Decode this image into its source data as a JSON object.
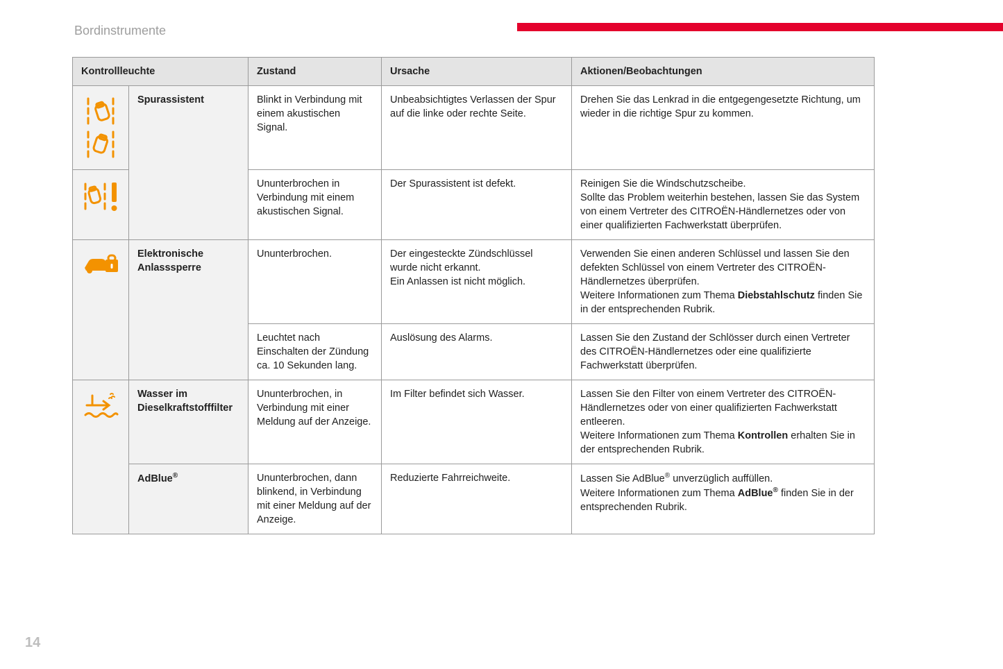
{
  "accent_color": "#e4012c",
  "icon_color": "#f39200",
  "section_title": "Bordinstrumente",
  "page_number": "14",
  "columns": {
    "c1": "Kontrollleuchte",
    "c2": "Zustand",
    "c3": "Ursache",
    "c4": "Aktionen/Beobachtungen"
  },
  "row1": {
    "name": "Spurassistent",
    "state": "Blinkt in Verbindung mit einem akustischen Signal.",
    "cause": "Unbeabsichtigtes Verlassen der Spur auf die linke oder rechte Seite.",
    "action": "Drehen Sie das Lenkrad in die entgegengesetzte Richtung, um wieder in die richtige Spur zu kommen."
  },
  "row2": {
    "state": "Ununterbrochen in Verbindung mit einem akustischen Signal.",
    "cause": "Der Spurassistent ist defekt.",
    "action": "Reinigen Sie die Windschutzscheibe.\nSollte das Problem weiterhin bestehen, lassen Sie das System von einem Vertreter des CITROËN-Händlernetzes oder von einer qualifizierten Fachwerkstatt überprüfen."
  },
  "row3": {
    "name": "Elektronische Anlasssperre",
    "state": "Ununterbrochen.",
    "cause": "Der eingesteckte Zündschlüssel wurde nicht erkannt.\nEin Anlassen ist nicht möglich.",
    "action_a": "Verwenden Sie einen anderen Schlüssel und lassen Sie den defekten Schlüssel von einem Vertreter des CITROËN-Händlernetzes überprüfen.",
    "action_b1": "Weitere Informationen zum Thema ",
    "action_b_bold": "Diebstahlschutz",
    "action_b2": " finden Sie in der entsprechenden Rubrik."
  },
  "row4": {
    "state": "Leuchtet nach Einschalten der Zündung ca. 10 Sekunden lang.",
    "cause": "Auslösung des Alarms.",
    "action": "Lassen Sie den Zustand der Schlösser durch einen Vertreter des CITROËN-Händlernetzes oder eine qualifizierte Fachwerkstatt überprüfen."
  },
  "row5": {
    "name": "Wasser im Dieselkraftstofffilter",
    "state": "Ununterbrochen, in Verbindung mit einer Meldung auf der Anzeige.",
    "cause": "Im Filter befindet sich Wasser.",
    "action_a": "Lassen Sie den Filter von einem Vertreter des CITROËN-Händlernetzes oder von einer qualifizierten Fachwerkstatt entleeren.",
    "action_b1": "Weitere Informationen zum Thema ",
    "action_b_bold": "Kontrollen",
    "action_b2": " erhalten Sie in der entsprechenden Rubrik."
  },
  "row6": {
    "name_a": "AdBlue",
    "name_sup": "®",
    "state": "Ununterbrochen, dann blinkend, in Verbindung mit einer Meldung auf der Anzeige.",
    "cause": "Reduzierte Fahrreichweite.",
    "action_a1": "Lassen Sie AdBlue",
    "action_a_sup": "®",
    "action_a2": " unverzüglich auffüllen.",
    "action_b1": "Weitere Informationen zum Thema ",
    "action_b_bold": "AdBlue",
    "action_b_sup": "®",
    "action_b2": " finden Sie in der entsprechenden Rubrik."
  }
}
